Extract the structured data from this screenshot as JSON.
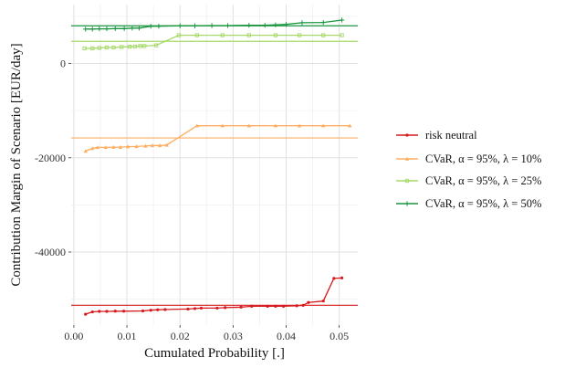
{
  "chart_data": {
    "type": "line",
    "xlabel": "Cumulated Probability [.]",
    "ylabel": "Contribution Margin of Scenario [EUR/day]",
    "xlim": [
      -0.0005,
      0.0535
    ],
    "ylim": [
      -55500,
      12500
    ],
    "x_ticks": [
      0.0,
      0.01,
      0.02,
      0.03,
      0.04,
      0.05
    ],
    "x_tick_labels": [
      "0.00",
      "0.01",
      "0.02",
      "0.03",
      "0.04",
      "0.05"
    ],
    "y_ticks": [
      -40000,
      -20000,
      0
    ],
    "y_tick_labels": [
      "-40000",
      "-20000",
      "0"
    ],
    "grid": true,
    "legend_position": "right",
    "series": [
      {
        "name": "risk neutral",
        "color": "#d7191c",
        "marker": "dot",
        "reference_line": -51300,
        "points": [
          [
            0.0022,
            -53200
          ],
          [
            0.0035,
            -52700
          ],
          [
            0.0048,
            -52600
          ],
          [
            0.0062,
            -52600
          ],
          [
            0.0078,
            -52550
          ],
          [
            0.0094,
            -52550
          ],
          [
            0.013,
            -52500
          ],
          [
            0.0145,
            -52350
          ],
          [
            0.0158,
            -52250
          ],
          [
            0.0172,
            -52200
          ],
          [
            0.0215,
            -52100
          ],
          [
            0.0228,
            -52000
          ],
          [
            0.024,
            -51900
          ],
          [
            0.027,
            -51900
          ],
          [
            0.0285,
            -51800
          ],
          [
            0.0315,
            -51700
          ],
          [
            0.0335,
            -51500
          ],
          [
            0.0365,
            -51500
          ],
          [
            0.038,
            -51500
          ],
          [
            0.0395,
            -51500
          ],
          [
            0.042,
            -51400
          ],
          [
            0.0432,
            -51300
          ],
          [
            0.0442,
            -50700
          ],
          [
            0.047,
            -50400
          ],
          [
            0.049,
            -45600
          ],
          [
            0.0505,
            -45500
          ]
        ]
      },
      {
        "name": "CVaR, α = 95%, λ = 10%",
        "color": "#fdae61",
        "marker": "triangle",
        "reference_line": -15800,
        "points": [
          [
            0.0022,
            -18600
          ],
          [
            0.0035,
            -18000
          ],
          [
            0.0045,
            -17800
          ],
          [
            0.006,
            -17800
          ],
          [
            0.0075,
            -17750
          ],
          [
            0.0088,
            -17750
          ],
          [
            0.0102,
            -17650
          ],
          [
            0.0118,
            -17600
          ],
          [
            0.0135,
            -17500
          ],
          [
            0.0148,
            -17400
          ],
          [
            0.0162,
            -17400
          ],
          [
            0.0175,
            -17300
          ],
          [
            0.0232,
            -13200
          ],
          [
            0.028,
            -13200
          ],
          [
            0.033,
            -13200
          ],
          [
            0.038,
            -13200
          ],
          [
            0.0425,
            -13200
          ],
          [
            0.047,
            -13200
          ],
          [
            0.052,
            -13200
          ]
        ]
      },
      {
        "name": "CVaR, α = 95%, λ = 25%",
        "color": "#a6d96a",
        "marker": "square",
        "reference_line": 4700,
        "points": [
          [
            0.002,
            3200
          ],
          [
            0.0035,
            3200
          ],
          [
            0.0048,
            3300
          ],
          [
            0.0062,
            3400
          ],
          [
            0.0075,
            3400
          ],
          [
            0.009,
            3500
          ],
          [
            0.0105,
            3550
          ],
          [
            0.0115,
            3600
          ],
          [
            0.0125,
            3700
          ],
          [
            0.0133,
            3700
          ],
          [
            0.0155,
            3850
          ],
          [
            0.0198,
            6000
          ],
          [
            0.0232,
            6000
          ],
          [
            0.028,
            6000
          ],
          [
            0.033,
            6000
          ],
          [
            0.038,
            6000
          ],
          [
            0.0425,
            6000
          ],
          [
            0.047,
            6000
          ],
          [
            0.0505,
            6000
          ]
        ]
      },
      {
        "name": "CVaR, α = 95%, λ = 50%",
        "color": "#1a9641",
        "marker": "plus",
        "reference_line": 8000,
        "points": [
          [
            0.0022,
            7300
          ],
          [
            0.0035,
            7300
          ],
          [
            0.0048,
            7350
          ],
          [
            0.0062,
            7350
          ],
          [
            0.0078,
            7400
          ],
          [
            0.0095,
            7400
          ],
          [
            0.011,
            7500
          ],
          [
            0.0123,
            7500
          ],
          [
            0.0145,
            7900
          ],
          [
            0.016,
            7900
          ],
          [
            0.02,
            8000
          ],
          [
            0.0228,
            8000
          ],
          [
            0.026,
            8050
          ],
          [
            0.029,
            8050
          ],
          [
            0.033,
            8100
          ],
          [
            0.036,
            8100
          ],
          [
            0.038,
            8200
          ],
          [
            0.04,
            8300
          ],
          [
            0.043,
            8650
          ],
          [
            0.047,
            8700
          ],
          [
            0.0505,
            9200
          ]
        ]
      }
    ]
  }
}
